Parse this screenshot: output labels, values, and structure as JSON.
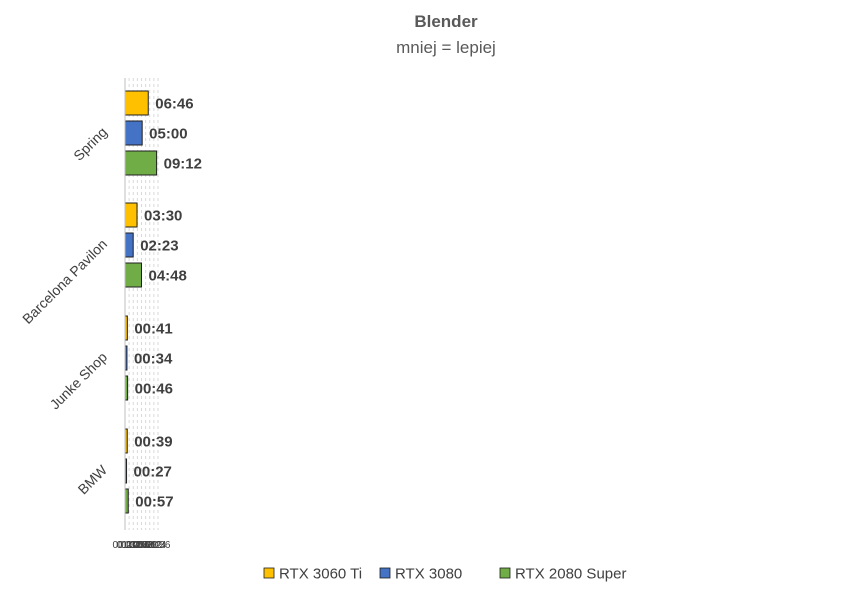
{
  "chart_data": {
    "type": "bar",
    "orientation": "horizontal",
    "title": "Blender",
    "subtitle": "mniej = lepiej",
    "categories": [
      "Spring",
      "Barcelona Pavilon",
      "Junke Shop",
      "BMW"
    ],
    "series": [
      {
        "name": "RTX 3060 Ti",
        "color": "#ffc000",
        "values_seconds": [
          406,
          210,
          41,
          39
        ],
        "labels": [
          "06:46",
          "03:30",
          "00:41",
          "00:39"
        ]
      },
      {
        "name": "RTX 3080",
        "color": "#4472c4",
        "values_seconds": [
          300,
          143,
          34,
          27
        ],
        "labels": [
          "05:00",
          "02:23",
          "00:34",
          "00:27"
        ]
      },
      {
        "name": "RTX 2080 Super",
        "color": "#70ad47",
        "values_seconds": [
          552,
          288,
          46,
          57
        ],
        "labels": [
          "09:12",
          "04:48",
          "00:46",
          "00:57"
        ]
      }
    ],
    "xlim_seconds": [
      0,
      648
    ],
    "x_ticks_seconds": [
      0,
      72,
      144,
      216,
      288,
      360,
      432,
      504,
      576
    ],
    "x_tick_labels": [
      "00:00",
      "01:12",
      "02:24",
      "03:36",
      "04:48",
      "06:00",
      "07:12",
      "08:24",
      "09:36"
    ],
    "grid": true,
    "legend_position": "bottom"
  }
}
